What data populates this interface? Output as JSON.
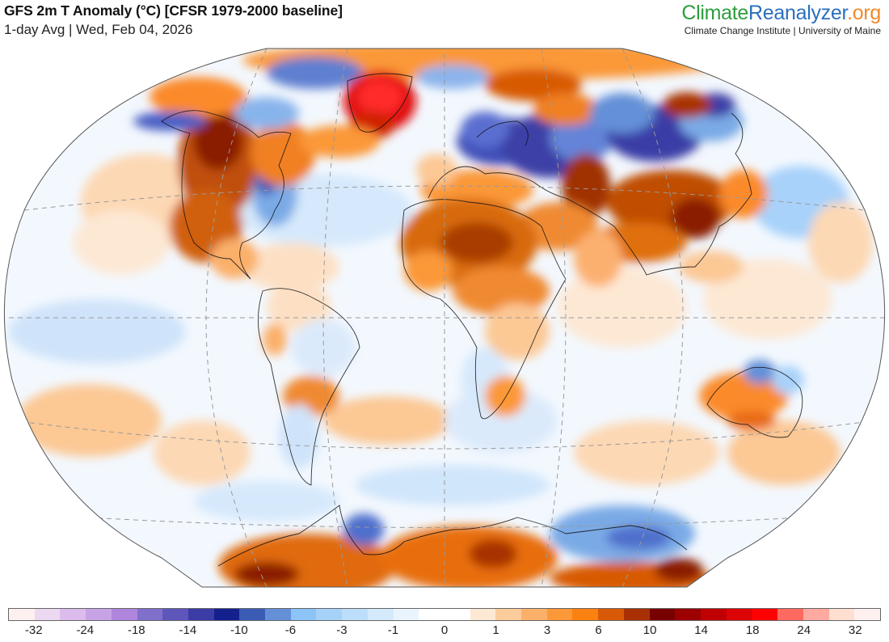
{
  "header": {
    "title": "GFS 2m T Anomaly (°C) [CFSR 1979-2000 baseline]",
    "subtitle": "1-day Avg | Wed, Feb 04, 2026"
  },
  "brand": {
    "logo_part1": "Climate",
    "logo_part2": "Reanalyzer",
    "logo_part3": ".org",
    "tagline": "Climate Change Institute | University of Maine",
    "colors": {
      "climate": "#2e9e3e",
      "reanalyzer": "#2a6fbe",
      "org": "#f0892b"
    }
  },
  "map": {
    "projection": "Winkel Tripel (global)",
    "variable": "2m temperature anomaly",
    "units": "°C",
    "baseline": "CFSR 1979-2000",
    "averaging": "1-day",
    "date": "Wed, Feb 04, 2026",
    "graticule": "dashed gray",
    "notable_regions": [
      {
        "name": "Greenland",
        "anomaly": "strong warm (+14 to +24)"
      },
      {
        "name": "Western Canada / Western US",
        "anomaly": "warm (+6 to +14)"
      },
      {
        "name": "Eastern US / Great Lakes",
        "anomaly": "cool (-3 to -10)"
      },
      {
        "name": "Scandinavia / Western Russia",
        "anomaly": "cold (-10 to -18)"
      },
      {
        "name": "Central Siberia",
        "anomaly": "cold (-10 to -18)"
      },
      {
        "name": "Sahara / North Africa",
        "anomaly": "warm (+3 to +10)"
      },
      {
        "name": "China / Mongolia",
        "anomaly": "warm (+6 to +10)"
      },
      {
        "name": "Central Asia / Kazakhstan",
        "anomaly": "warm (+6 to +12)"
      },
      {
        "name": "Australia interior",
        "anomaly": "warm (+3 to +6)"
      },
      {
        "name": "East Antarctica (Indian sector)",
        "anomaly": "warm (+6 to +12)"
      },
      {
        "name": "Antarctic Peninsula / Weddell",
        "anomaly": "cool (-3 to -10)"
      },
      {
        "name": "Wilkes Land / Pacific sector Antarctica",
        "anomaly": "cool (-3 to -10)"
      }
    ]
  },
  "legend": {
    "colors": [
      "#fff0f0",
      "#ecd8f0",
      "#dcbcec",
      "#c7a3e6",
      "#b086dd",
      "#8070cc",
      "#5e56bb",
      "#3c3ca6",
      "#14208e",
      "#3a5cb4",
      "#6490d8",
      "#8cc4f8",
      "#a6d2fa",
      "#bcdefa",
      "#d4eafc",
      "#eaf4fe",
      "#ffffff",
      "#ffffff",
      "#fde8d4",
      "#fdcc9c",
      "#fbb06a",
      "#fb9838",
      "#fb8210",
      "#d85a06",
      "#a83004",
      "#780000",
      "#9c0000",
      "#c00000",
      "#dc0404",
      "#ff0000",
      "#ff6a60",
      "#ffaaa0",
      "#ffe0d0",
      "#fff0f0"
    ],
    "ticks": [
      {
        "label": "-32",
        "pos": 0.0417
      },
      {
        "label": "-24",
        "pos": 0.1296
      },
      {
        "label": "-18",
        "pos": 0.2176
      },
      {
        "label": "-14",
        "pos": 0.3056
      },
      {
        "label": "-10",
        "pos": 0.3935
      },
      {
        "label": "-6",
        "pos": 0.4815
      },
      {
        "label": "-3",
        "pos": 0.5694
      },
      {
        "label": "-1",
        "pos": 0.6574
      },
      {
        "label": "0",
        "pos": 0.7454
      },
      {
        "label": "1",
        "pos": 0.8333
      },
      {
        "label": "3",
        "pos": 0.9213
      },
      {
        "label": "6",
        "pos": 1.0093
      },
      {
        "label": "10",
        "pos": 1.0972
      },
      {
        "label": "14",
        "pos": 1.1852
      },
      {
        "label": "18",
        "pos": 1.2731
      },
      {
        "label": "24",
        "pos": 1.3611
      },
      {
        "label": "32",
        "pos": 1.4491
      }
    ]
  }
}
